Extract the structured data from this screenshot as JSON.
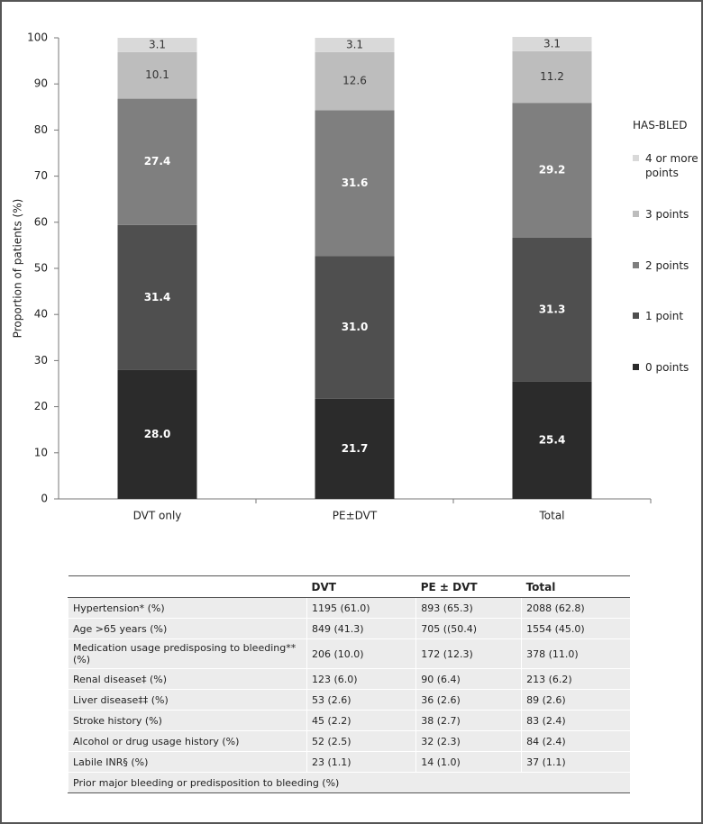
{
  "chart_data": {
    "type": "bar",
    "stacked": true,
    "y_label": "Proportion of patients (%)",
    "legend_title": "HAS-BLED",
    "categories": [
      "DVT only",
      "PE±DVT",
      "Total"
    ],
    "ylim": [
      0,
      100
    ],
    "yticks": [
      0,
      10,
      20,
      30,
      40,
      50,
      60,
      70,
      80,
      90,
      100
    ],
    "grid": false,
    "series": [
      {
        "name": "0 points",
        "color": "#2b2b2b",
        "values": [
          28.0,
          21.7,
          25.4
        ],
        "value_labels": [
          "28.0",
          "21.7",
          "25.4"
        ]
      },
      {
        "name": "1 point",
        "color": "#4f4f4f",
        "values": [
          31.4,
          31.0,
          31.3
        ],
        "value_labels": [
          "31.4",
          "31.0",
          "31.3"
        ]
      },
      {
        "name": "2 points",
        "color": "#7f7f7f",
        "values": [
          27.4,
          31.6,
          29.2
        ],
        "value_labels": [
          "27.4",
          "31.6",
          "29.2"
        ]
      },
      {
        "name": "3 points",
        "color": "#bdbdbd",
        "values": [
          10.1,
          12.6,
          11.2
        ],
        "value_labels": [
          "10.1",
          "12.6",
          "11.2"
        ]
      },
      {
        "name": "4 or more points",
        "color": "#d9d9d9",
        "values": [
          3.1,
          3.1,
          3.1
        ],
        "value_labels": [
          "3.1",
          "3.1",
          "3.1"
        ]
      }
    ]
  },
  "table": {
    "headers": [
      "DVT",
      "PE ± DVT",
      "Total"
    ],
    "rows": [
      [
        "Hypertension* (%)",
        "1195 (61.0)",
        "893 (65.3)",
        "2088 (62.8)"
      ],
      [
        "Age >65 years (%)",
        "849 (41.3)",
        "705 ((50.4)",
        "1554 (45.0)"
      ],
      [
        "Medication usage predisposing to bleeding** (%)",
        "206 (10.0)",
        "172 (12.3)",
        "378 (11.0)"
      ],
      [
        "Renal disease‡ (%)",
        "123 (6.0)",
        "90 (6.4)",
        "213 (6.2)"
      ],
      [
        "Liver disease‡‡ (%)",
        "53 (2.6)",
        "36 (2.6)",
        "89 (2.6)"
      ],
      [
        "Stroke history (%)",
        "45 (2.2)",
        "38 (2.7)",
        "83 (2.4)"
      ],
      [
        "Alcohol or drug usage history (%)",
        "52 (2.5)",
        "32 (2.3)",
        "84 (2.4)"
      ],
      [
        "Labile INR§ (%)",
        "23 (1.1)",
        "14 (1.0)",
        "37 (1.1)"
      ],
      [
        "Prior major bleeding or predisposition to bleeding (%)"
      ]
    ]
  }
}
